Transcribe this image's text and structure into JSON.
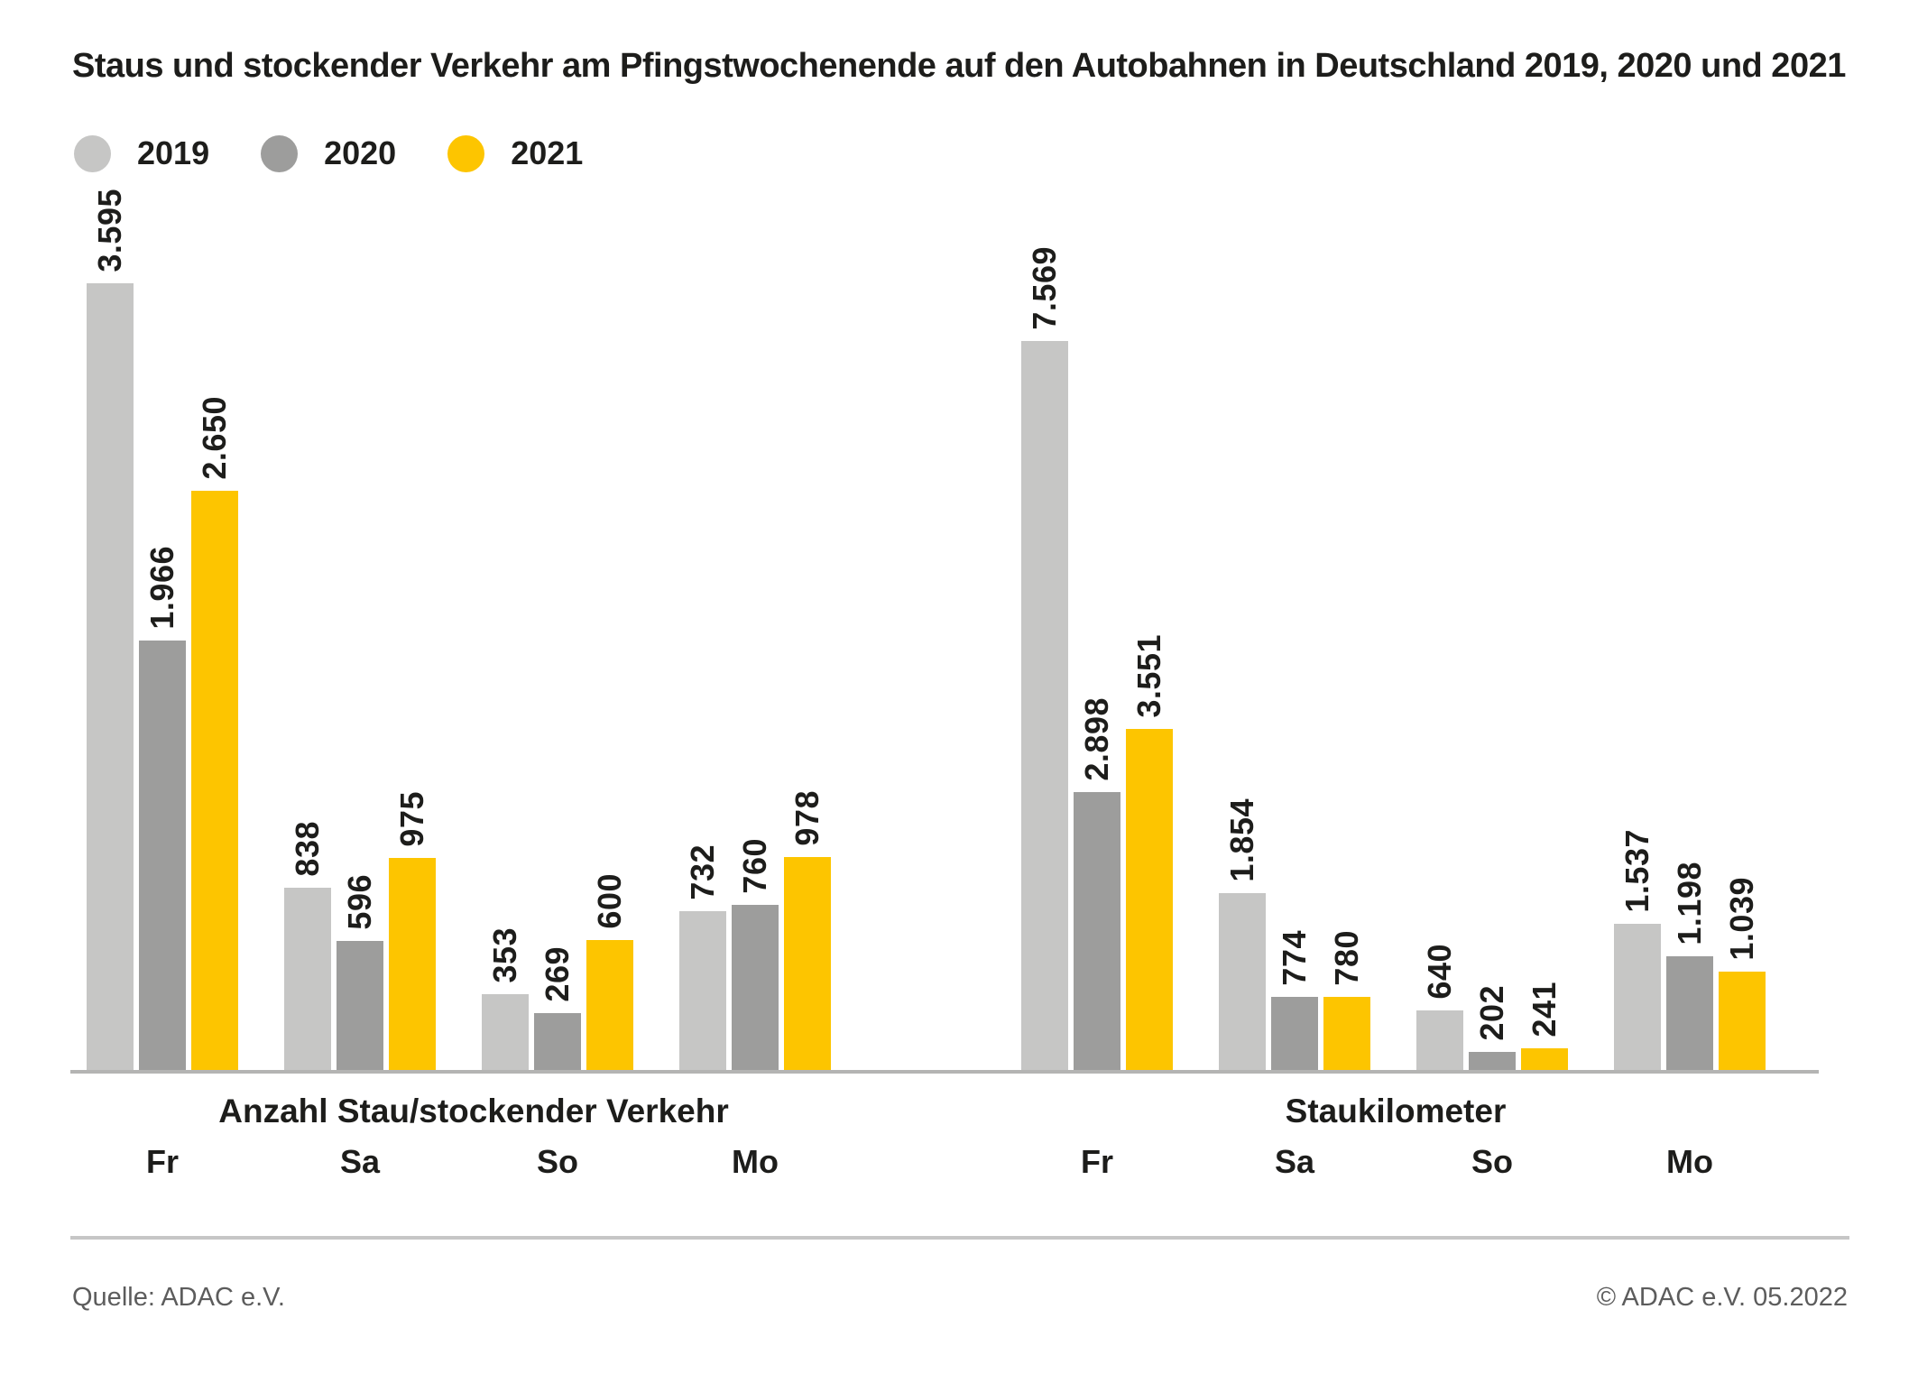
{
  "title": "Staus und stockender Verkehr am Pfingstwochenende auf den Autobahnen in Deutschland 2019, 2020 und 2021",
  "legend": [
    {
      "label": "2019",
      "color": "#c6c6c5"
    },
    {
      "label": "2020",
      "color": "#9d9d9c"
    },
    {
      "label": "2021",
      "color": "#fdc500"
    }
  ],
  "colors": {
    "bar_2019": "#c6c6c5",
    "bar_2020": "#9d9d9c",
    "bar_2021": "#fdc500",
    "text": "#1d1d1b",
    "footer_text": "#5c5c5c",
    "axis": "#b4b4b3"
  },
  "chart_data": [
    {
      "type": "bar",
      "title": "Anzahl Stau/stockender Verkehr",
      "categories": [
        "Fr",
        "Sa",
        "So",
        "Mo"
      ],
      "legend_position": "top-left",
      "grid": false,
      "value_axis_visible": false,
      "series": [
        {
          "name": "2019",
          "color": "#c6c6c5",
          "values": [
            3595,
            838,
            353,
            732
          ],
          "labels": [
            "3.595",
            "838",
            "353",
            "732"
          ]
        },
        {
          "name": "2020",
          "color": "#9d9d9c",
          "values": [
            1966,
            596,
            269,
            760
          ],
          "labels": [
            "1.966",
            "596",
            "269",
            "760"
          ]
        },
        {
          "name": "2021",
          "color": "#fdc500",
          "values": [
            2650,
            975,
            600,
            978
          ],
          "labels": [
            "2.650",
            "975",
            "600",
            "978"
          ]
        }
      ]
    },
    {
      "type": "bar",
      "title": "Staukilometer",
      "categories": [
        "Fr",
        "Sa",
        "So",
        "Mo"
      ],
      "legend_position": "top-left",
      "grid": false,
      "value_axis_visible": false,
      "series": [
        {
          "name": "2019",
          "color": "#c6c6c5",
          "values": [
            7569,
            1854,
            640,
            1537
          ],
          "labels": [
            "7.569",
            "1.854",
            "640",
            "1.537"
          ]
        },
        {
          "name": "2020",
          "color": "#9d9d9c",
          "values": [
            2898,
            774,
            202,
            1198
          ],
          "labels": [
            "2.898",
            "774",
            "202",
            "1.198"
          ]
        },
        {
          "name": "2021",
          "color": "#fdc500",
          "values": [
            3551,
            780,
            241,
            1039
          ],
          "labels": [
            "3.551",
            "780",
            "241",
            "1.039"
          ]
        }
      ]
    }
  ],
  "footer": {
    "source": "Quelle: ADAC e.V.",
    "copyright": "© ADAC e.V. 05.2022"
  }
}
